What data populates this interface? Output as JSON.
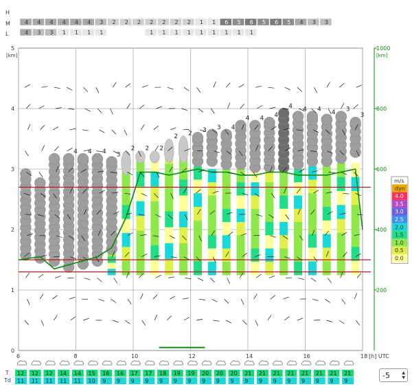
{
  "chart_data": {
    "type": "meteogram",
    "time_axis": {
      "ticks": [
        6,
        8,
        10,
        12,
        14,
        16,
        18
      ],
      "unit_label": "[h] UTC",
      "range": [
        6,
        18
      ]
    },
    "left_axis": {
      "unit": "[km]",
      "ticks": [
        0,
        1,
        2,
        3,
        4,
        5
      ],
      "range": [
        0,
        5
      ]
    },
    "right_axis": {
      "unit": "[km]",
      "ticks": [
        200,
        400,
        600,
        800,
        1000
      ],
      "range": [
        0,
        1000
      ]
    },
    "cloud_rows": {
      "labels": [
        "H",
        "M",
        "L"
      ],
      "M": [
        4,
        4,
        4,
        4,
        4,
        4,
        3,
        2,
        2,
        2,
        2,
        2,
        2,
        2,
        1,
        1,
        6,
        5,
        6,
        5,
        6,
        5,
        4,
        3,
        3
      ],
      "L": [
        4,
        3,
        3,
        1,
        1,
        1,
        1,
        null,
        null,
        null,
        1,
        1,
        1,
        1,
        1,
        1,
        1,
        1,
        1,
        null,
        null,
        null,
        null,
        null,
        null
      ]
    },
    "columns": [
      {
        "t": 6.25,
        "top": 3.0,
        "bottom": 1.5,
        "bar": null,
        "shade": "gray"
      },
      {
        "t": 6.75,
        "top": 2.85,
        "bottom": 1.45,
        "bar": null,
        "shade": "gray"
      },
      {
        "t": 7.25,
        "top": 3.25,
        "bottom": 1.4,
        "bar": null,
        "shade": "gray"
      },
      {
        "t": 7.75,
        "top": 3.25,
        "bottom": 1.3,
        "bar": [
          1.35,
          1.65
        ],
        "shade": "gray",
        "label": "4"
      },
      {
        "t": 8.25,
        "top": 3.25,
        "bottom": 1.35,
        "bar": [
          1.55,
          3.1
        ],
        "shade": "gray",
        "label": "4"
      },
      {
        "t": 8.75,
        "top": 3.25,
        "bottom": 1.4,
        "bar": [
          1.55,
          1.65
        ],
        "shade": "gray",
        "label": "4"
      },
      {
        "t": 9.25,
        "top": 3.2,
        "bottom": 1.6,
        "bar": [
          1.25,
          2.05
        ],
        "shade": "gray",
        "label": "3"
      },
      {
        "t": 9.75,
        "top": 3.3,
        "bottom": 2.9,
        "bar": [
          1.25,
          3.1
        ],
        "shade": "lightgray",
        "label": "2"
      },
      {
        "t": 10.25,
        "top": 3.3,
        "bottom": 3.1,
        "bar": [
          1.25,
          3.2
        ],
        "shade": "lightgray",
        "label": "2"
      },
      {
        "t": 10.75,
        "top": 3.3,
        "bottom": 3.1,
        "bar": [
          1.25,
          3.2
        ],
        "shade": "lightgray",
        "label": "2"
      },
      {
        "t": 11.25,
        "top": 3.5,
        "bottom": 3.1,
        "bar": [
          1.25,
          3.35
        ],
        "shade": "lightgray",
        "label": "2"
      },
      {
        "t": 11.75,
        "top": 3.55,
        "bottom": 3.1,
        "bar": [
          1.25,
          3.35
        ],
        "shade": "lightgray",
        "label": "2"
      },
      {
        "t": 12.25,
        "top": 3.6,
        "bottom": 3.05,
        "bar": [
          1.25,
          3.05
        ],
        "shade": "gray",
        "label": "3"
      },
      {
        "t": 12.75,
        "top": 3.65,
        "bottom": 3.05,
        "bar": [
          1.25,
          3.0
        ],
        "shade": "gray",
        "label": "3"
      },
      {
        "t": 13.25,
        "top": 3.65,
        "bottom": 3.0,
        "bar": [
          1.25,
          3.0
        ],
        "shade": "gray",
        "label": "4"
      },
      {
        "t": 13.75,
        "top": 3.8,
        "bottom": 3.0,
        "bar": [
          1.25,
          3.0
        ],
        "shade": "gray",
        "label": "4"
      },
      {
        "t": 14.25,
        "top": 3.8,
        "bottom": 2.95,
        "bar": [
          1.25,
          3.0
        ],
        "shade": "gray",
        "label": "4"
      },
      {
        "t": 14.75,
        "top": 3.85,
        "bottom": 2.95,
        "bar": [
          1.25,
          3.0
        ],
        "shade": "gray",
        "label": "4"
      },
      {
        "t": 15.25,
        "top": 4.0,
        "bottom": 2.95,
        "bar": [
          1.25,
          3.0
        ],
        "shade": "darkgray",
        "label": "4"
      },
      {
        "t": 15.75,
        "top": 3.95,
        "bottom": 3.0,
        "bar": [
          1.25,
          3.0
        ],
        "shade": "gray",
        "label": "4"
      },
      {
        "t": 16.25,
        "top": 3.95,
        "bottom": 3.05,
        "bar": [
          1.25,
          3.05
        ],
        "shade": "gray",
        "label": "4"
      },
      {
        "t": 16.75,
        "top": 3.9,
        "bottom": 3.05,
        "bar": [
          1.25,
          3.05
        ],
        "shade": "gray",
        "label": "4"
      },
      {
        "t": 17.25,
        "top": 3.95,
        "bottom": 3.1,
        "bar": [
          1.25,
          3.1
        ],
        "shade": "gray",
        "label": "3"
      },
      {
        "t": 17.75,
        "top": 3.85,
        "bottom": 3.2,
        "bar": [
          1.25,
          3.1
        ],
        "shade": "gray",
        "label": "3"
      }
    ],
    "bl_height_km": [
      {
        "t": 6.0,
        "v": 1.5
      },
      {
        "t": 6.75,
        "v": 1.55
      },
      {
        "t": 7.25,
        "v": 1.35
      },
      {
        "t": 8.0,
        "v": 1.45
      },
      {
        "t": 8.75,
        "v": 1.55
      },
      {
        "t": 9.25,
        "v": 1.7
      },
      {
        "t": 9.75,
        "v": 2.2
      },
      {
        "t": 10.25,
        "v": 2.95
      },
      {
        "t": 10.75,
        "v": 2.95
      },
      {
        "t": 11.25,
        "v": 2.9
      },
      {
        "t": 11.75,
        "v": 2.95
      },
      {
        "t": 12.25,
        "v": 3.0
      },
      {
        "t": 12.75,
        "v": 2.95
      },
      {
        "t": 13.25,
        "v": 2.95
      },
      {
        "t": 13.75,
        "v": 2.9
      },
      {
        "t": 14.25,
        "v": 2.9
      },
      {
        "t": 14.75,
        "v": 2.95
      },
      {
        "t": 15.25,
        "v": 2.95
      },
      {
        "t": 15.75,
        "v": 2.9
      },
      {
        "t": 16.25,
        "v": 2.9
      },
      {
        "t": 16.75,
        "v": 2.9
      },
      {
        "t": 17.25,
        "v": 2.95
      },
      {
        "t": 17.75,
        "v": 3.0
      },
      {
        "t": 18.0,
        "v": 2.0
      }
    ],
    "inversion_lines_km": [
      2.7,
      1.3,
      1.5
    ],
    "legend": {
      "title": "m/s",
      "entries": [
        {
          "label": "dyn",
          "color": "#f0a800"
        },
        {
          "label": "4.0",
          "color": "#ff2f5a"
        },
        {
          "label": "3.5",
          "color": "#b04ac8"
        },
        {
          "label": "3.0",
          "color": "#6a5de0"
        },
        {
          "label": "2.5",
          "color": "#3d8ff0"
        },
        {
          "label": "2.0",
          "color": "#19d8d8"
        },
        {
          "label": "1.5",
          "color": "#22dd88"
        },
        {
          "label": "1.0",
          "color": "#8ee84a"
        },
        {
          "label": "0.5",
          "color": "#dff04a"
        },
        {
          "label": "0.0",
          "color": "#ffff99"
        }
      ]
    },
    "bottom_rows": {
      "T_label": "T",
      "Td_label": "Td",
      "T": [
        "12",
        "12",
        "12",
        "14",
        "14",
        "15",
        "16",
        "16",
        "17",
        "17",
        "18",
        "19",
        "19",
        "20",
        "20",
        "20",
        "21",
        "21",
        "21",
        "21",
        "21",
        "21",
        "21",
        "21"
      ],
      "Td": [
        "11",
        "11",
        "11",
        "11",
        "11",
        "10",
        "9",
        "9",
        "9",
        "9",
        "9",
        "9",
        "9",
        "9",
        "9",
        "9",
        "9",
        "9",
        "9",
        "9",
        "9",
        "9",
        "9",
        "9"
      ]
    }
  },
  "controls": {
    "offset_value": "-5"
  },
  "colors": {
    "T_cell": "#19d878",
    "Td_cell": "#19d8d8",
    "bl_line": "#0b8a0b",
    "inversion": "#c01818"
  }
}
